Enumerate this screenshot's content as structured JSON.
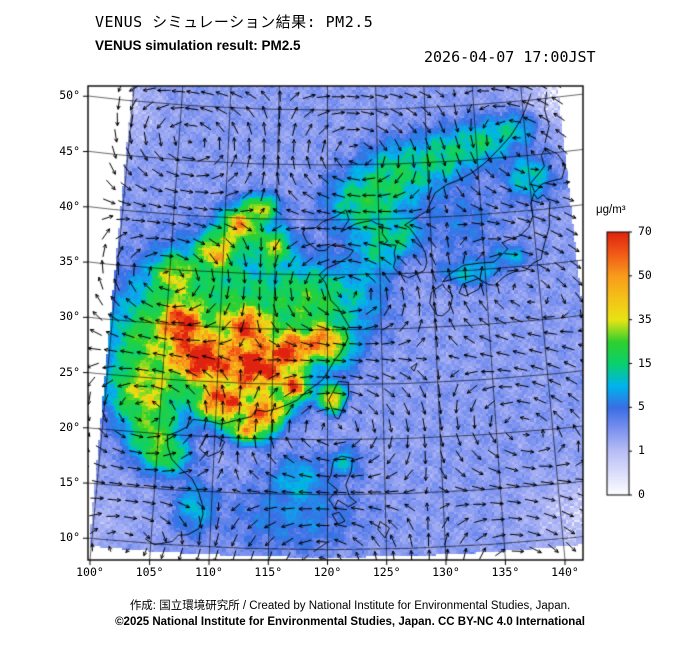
{
  "header": {
    "title_ja": "VENUS シミュレーション結果: PM2.5",
    "title_en": "VENUS simulation result: PM2.5",
    "datetime": "2026-04-07 17:00JST"
  },
  "footer": {
    "credit_line": "作成: 国立環境研究所 / Created by National Institute for Environmental Studies, Japan.",
    "license_line": "©2025 National Institute for Environmental Studies, Japan. CC BY-NC 4.0 International"
  },
  "colorbar": {
    "unit": "μg/m³",
    "tick_labels": [
      "70",
      "50",
      "35",
      "15",
      "5",
      "1",
      "0"
    ]
  },
  "axes": {
    "y_tick_labels": [
      "50°",
      "45°",
      "40°",
      "35°",
      "30°",
      "25°",
      "20°",
      "15°",
      "10°"
    ],
    "x_tick_labels": [
      "100°",
      "105°",
      "110°",
      "115°",
      "120°",
      "125°",
      "130°",
      "135°",
      "140°"
    ]
  },
  "chart_data": {
    "type": "heatmap",
    "title": "VENUS simulation result: PM2.5",
    "datetime": "2026-04-07 17:00JST",
    "unit": "μg/m³",
    "lon_domain": [
      99.8,
      143.8
    ],
    "lat_domain": [
      9.3,
      52.5
    ],
    "scale_levels": [
      0,
      1,
      5,
      15,
      35,
      50,
      70
    ],
    "colormap": {
      "values": [
        0,
        1,
        3,
        5,
        10,
        15,
        25,
        35,
        42,
        50,
        60,
        70
      ],
      "colors": [
        "#ffffff",
        "#b9bef6",
        "#7d92ef",
        "#3a6ee4",
        "#00b4ee",
        "#0ad06e",
        "#2ed02e",
        "#e6e414",
        "#f4c418",
        "#f89c1b",
        "#f25c16",
        "#e02310"
      ]
    },
    "base_level": 2.6,
    "plumes": [
      [
        108.5,
        27.0,
        2.2,
        1.8,
        72
      ],
      [
        113.5,
        26.5,
        2.4,
        2.0,
        70
      ],
      [
        116.8,
        28.2,
        1.6,
        1.4,
        58
      ],
      [
        110.5,
        23.2,
        2.0,
        1.5,
        62
      ],
      [
        114.5,
        22.5,
        1.6,
        1.2,
        55
      ],
      [
        106.5,
        30.2,
        1.6,
        1.6,
        55
      ],
      [
        112.5,
        30.2,
        1.8,
        1.4,
        48
      ],
      [
        117.0,
        24.8,
        1.2,
        1.2,
        50
      ],
      [
        119.5,
        29.0,
        1.2,
        1.2,
        38
      ],
      [
        120.4,
        23.8,
        0.9,
        1.0,
        48
      ],
      [
        113.0,
        20.8,
        1.6,
        1.0,
        40
      ],
      [
        111.5,
        39.3,
        1.6,
        1.4,
        42
      ],
      [
        109.3,
        36.8,
        1.6,
        1.4,
        38
      ],
      [
        113.5,
        41.0,
        1.4,
        1.0,
        30
      ],
      [
        105.5,
        34.5,
        1.8,
        1.6,
        26
      ],
      [
        114.8,
        37.5,
        1.4,
        1.4,
        26
      ],
      [
        111.0,
        31.0,
        6.5,
        5.5,
        18
      ],
      [
        104.0,
        28.0,
        3.5,
        4.5,
        20
      ],
      [
        118.5,
        32.5,
        3.0,
        2.8,
        16
      ],
      [
        103.5,
        23.5,
        2.5,
        2.2,
        24
      ],
      [
        104.5,
        20.0,
        2.0,
        2.0,
        20
      ],
      [
        120.5,
        28.5,
        1.8,
        1.8,
        20
      ],
      [
        123.5,
        41.5,
        3.0,
        2.5,
        14
      ],
      [
        127.0,
        44.0,
        3.0,
        2.5,
        14
      ],
      [
        131.5,
        45.5,
        2.5,
        2.0,
        12
      ],
      [
        135.5,
        46.5,
        2.5,
        1.8,
        12
      ],
      [
        125.0,
        37.5,
        2.0,
        2.2,
        10
      ],
      [
        127.5,
        38.5,
        1.5,
        1.5,
        10
      ],
      [
        105.8,
        18.0,
        1.8,
        1.5,
        16
      ],
      [
        108.5,
        13.5,
        1.5,
        2.0,
        8
      ],
      [
        117.5,
        16.5,
        2.0,
        1.8,
        7
      ],
      [
        121.5,
        18.0,
        1.2,
        1.2,
        8
      ],
      [
        133.5,
        34.8,
        2.2,
        1.0,
        9
      ],
      [
        137.5,
        36.0,
        1.8,
        0.9,
        7
      ],
      [
        140.0,
        43.0,
        2.0,
        1.7,
        11
      ],
      [
        139.0,
        47.5,
        2.0,
        1.3,
        9
      ],
      [
        123.0,
        33.0,
        2.5,
        3.5,
        6
      ],
      [
        117.0,
        13.0,
        5.0,
        3.0,
        4
      ],
      [
        133.0,
        39.5,
        3.5,
        3.0,
        3
      ],
      [
        98.0,
        49.0,
        4.0,
        3.0,
        -2.2
      ],
      [
        144.0,
        50.0,
        4.0,
        3.0,
        -2.2
      ],
      [
        142.0,
        12.0,
        5.0,
        4.0,
        -1.8
      ],
      [
        100.0,
        12.0,
        4.0,
        3.0,
        -1.0
      ]
    ],
    "wind": {
      "style": "arrows",
      "color": "#000000",
      "grid_deg": 1.5
    }
  }
}
